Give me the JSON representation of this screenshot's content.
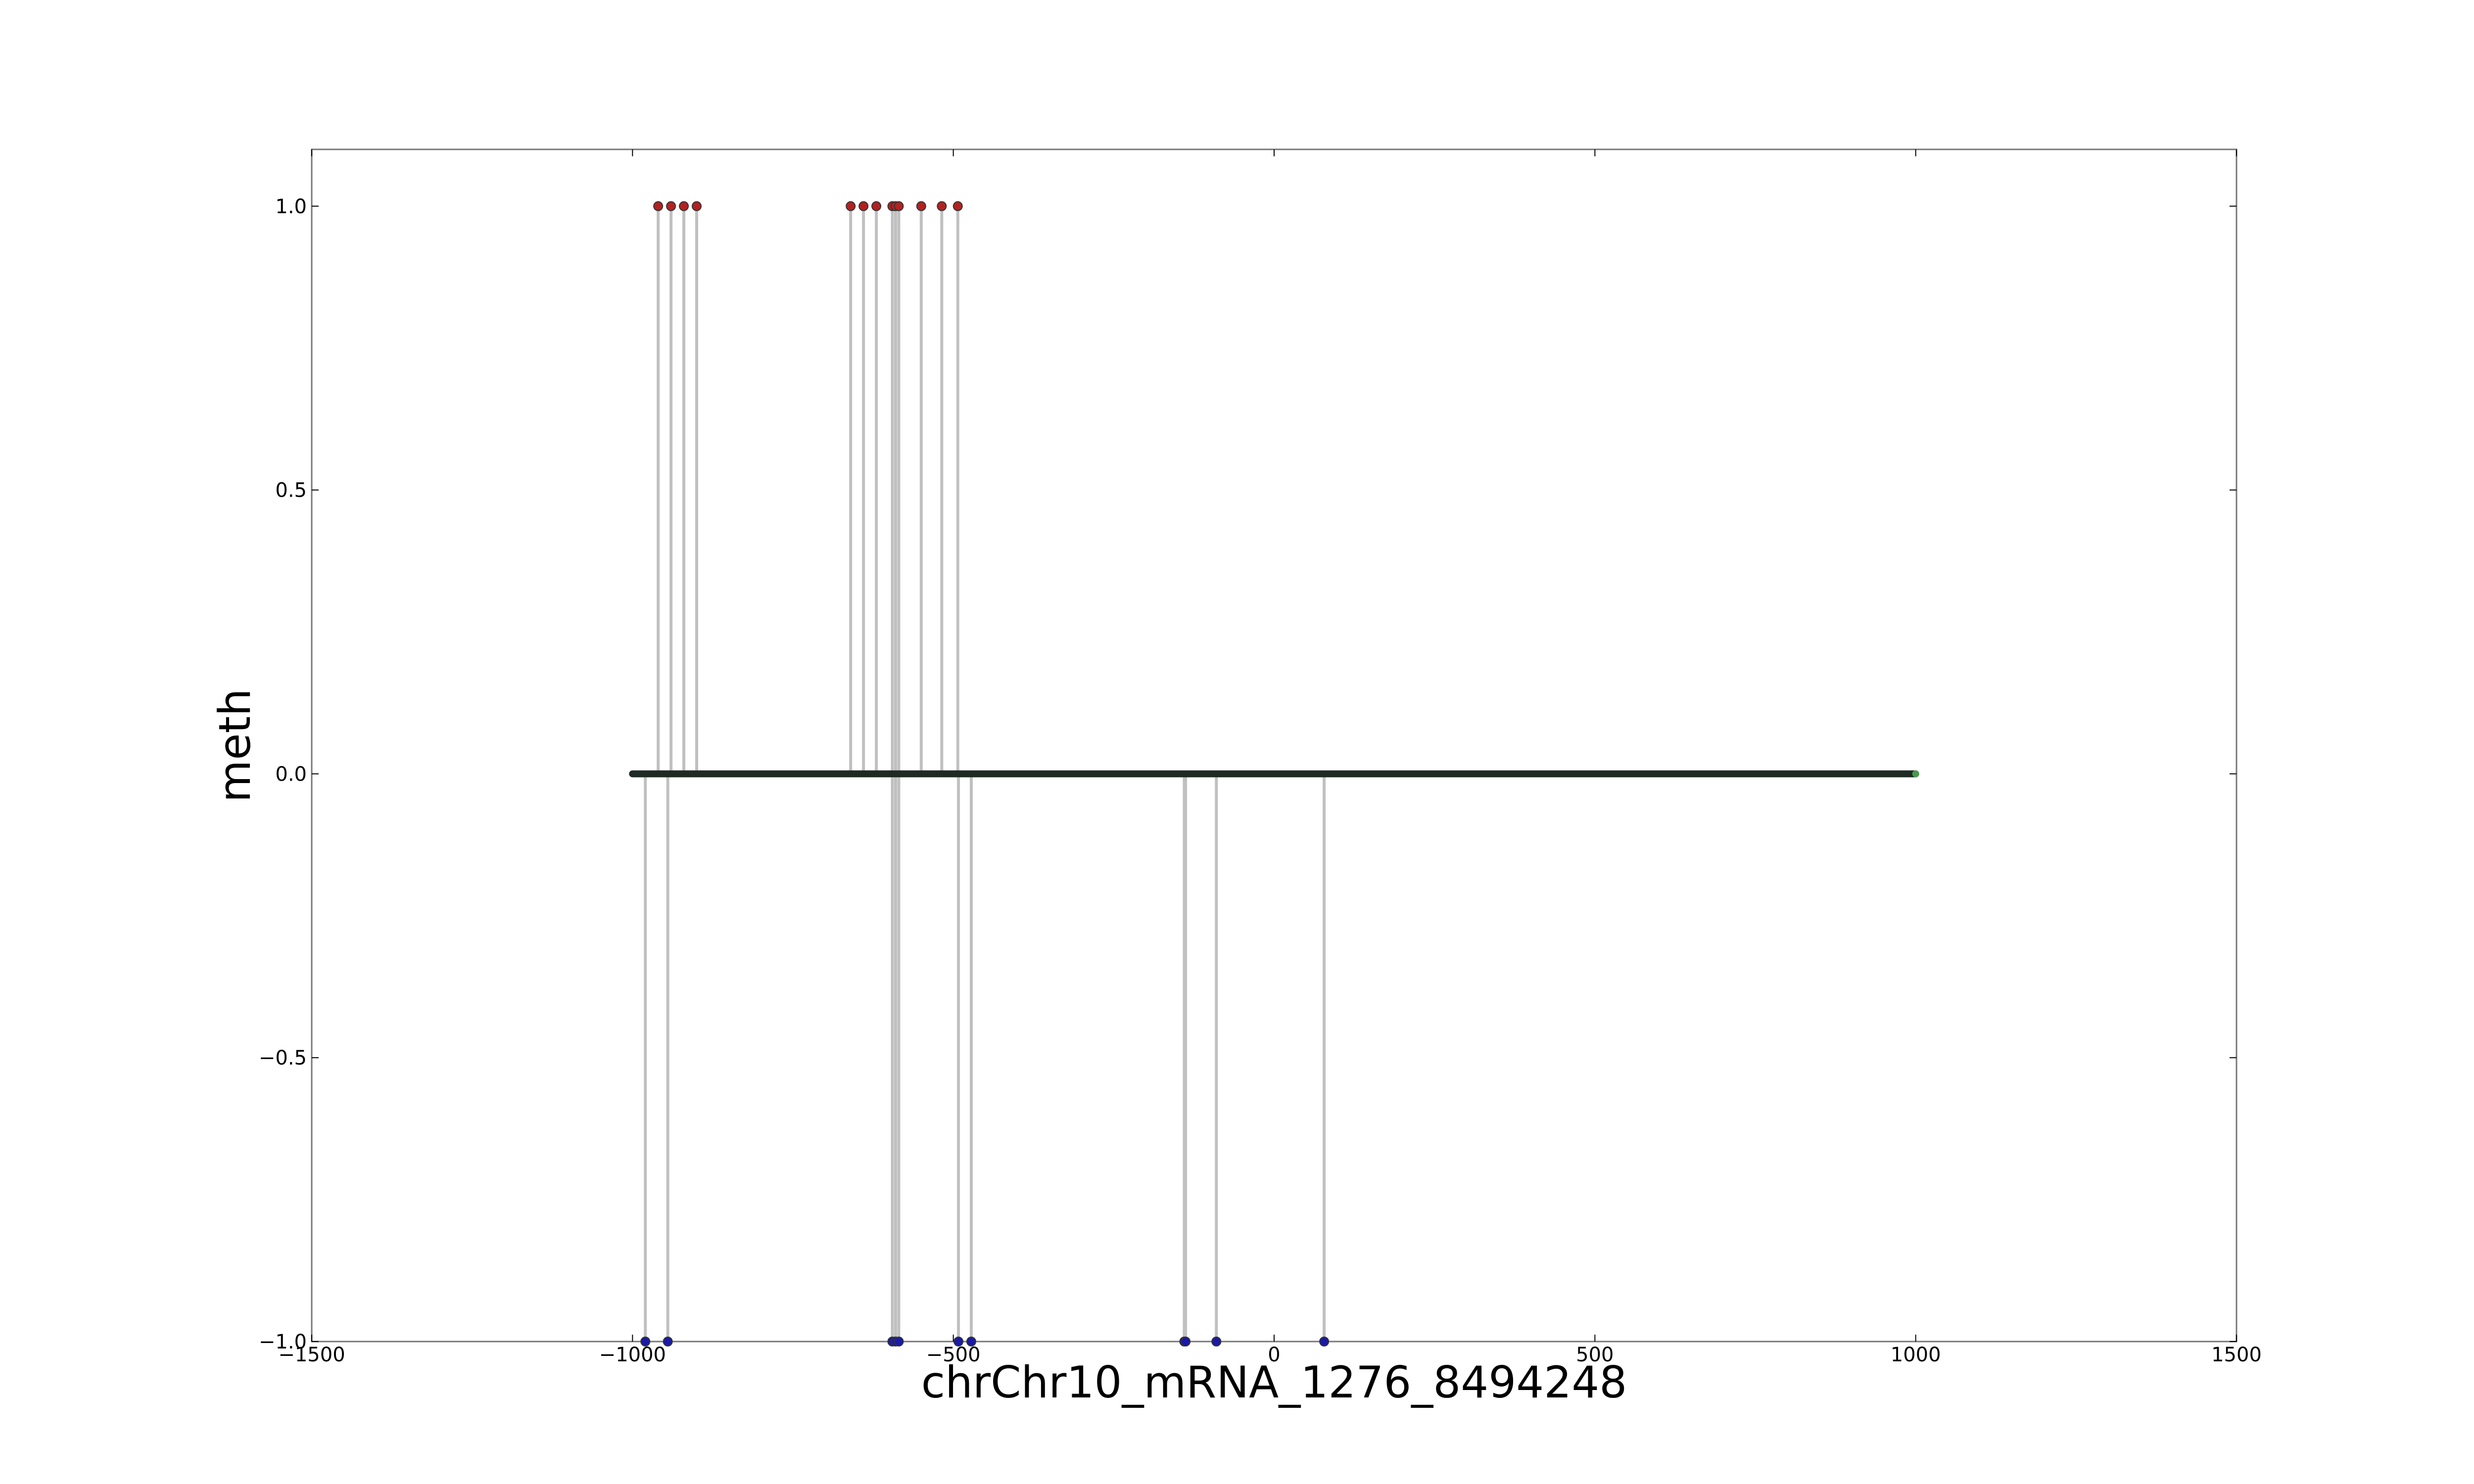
{
  "chart_data": {
    "type": "scatter",
    "title": "",
    "xlabel": "chrChr10_mRNA_1276_8494248",
    "ylabel": "meth",
    "xlim": [
      -1500,
      1500
    ],
    "ylim": [
      -1.0,
      1.1
    ],
    "xticks": [
      -1500,
      -1000,
      -500,
      0,
      500,
      1000,
      1500
    ],
    "xtick_labels": [
      "−1500",
      "−1000",
      "−500",
      "0",
      "500",
      "1000",
      "1500"
    ],
    "yticks": [
      -1.0,
      -0.5,
      0.0,
      0.5,
      1.0
    ],
    "ytick_labels": [
      "−1.0",
      "−0.5",
      "0.0",
      "0.5",
      "1.0"
    ],
    "grid": false,
    "legend": "none",
    "baseline": {
      "y": 0,
      "x_start": -1000,
      "x_end": 1000
    },
    "series": [
      {
        "color": "#b22222",
        "points": [
          {
            "x": -960,
            "y": 1
          },
          {
            "x": -940,
            "y": 1
          },
          {
            "x": -920,
            "y": 1
          },
          {
            "x": -900,
            "y": 1
          },
          {
            "x": -660,
            "y": 1
          },
          {
            "x": -640,
            "y": 1
          },
          {
            "x": -620,
            "y": 1
          },
          {
            "x": -595,
            "y": 1
          },
          {
            "x": -590,
            "y": 1
          },
          {
            "x": -585,
            "y": 1
          },
          {
            "x": -550,
            "y": 1
          },
          {
            "x": -518,
            "y": 1
          },
          {
            "x": -493,
            "y": 1
          }
        ]
      },
      {
        "color": "#1a1aa6",
        "points": [
          {
            "x": -980,
            "y": -1
          },
          {
            "x": -945,
            "y": -1
          },
          {
            "x": -595,
            "y": -1
          },
          {
            "x": -590,
            "y": -1
          },
          {
            "x": -585,
            "y": -1
          },
          {
            "x": -492,
            "y": -1
          },
          {
            "x": -472,
            "y": -1
          },
          {
            "x": -140,
            "y": -1
          },
          {
            "x": -138,
            "y": -1
          },
          {
            "x": -90,
            "y": -1
          },
          {
            "x": 78,
            "y": -1
          }
        ]
      }
    ]
  },
  "colors": {
    "stem": "#c0c0c0",
    "baseline": "#1e2a24",
    "frame": "#777777",
    "baseline_end": "#4a9a4a"
  }
}
